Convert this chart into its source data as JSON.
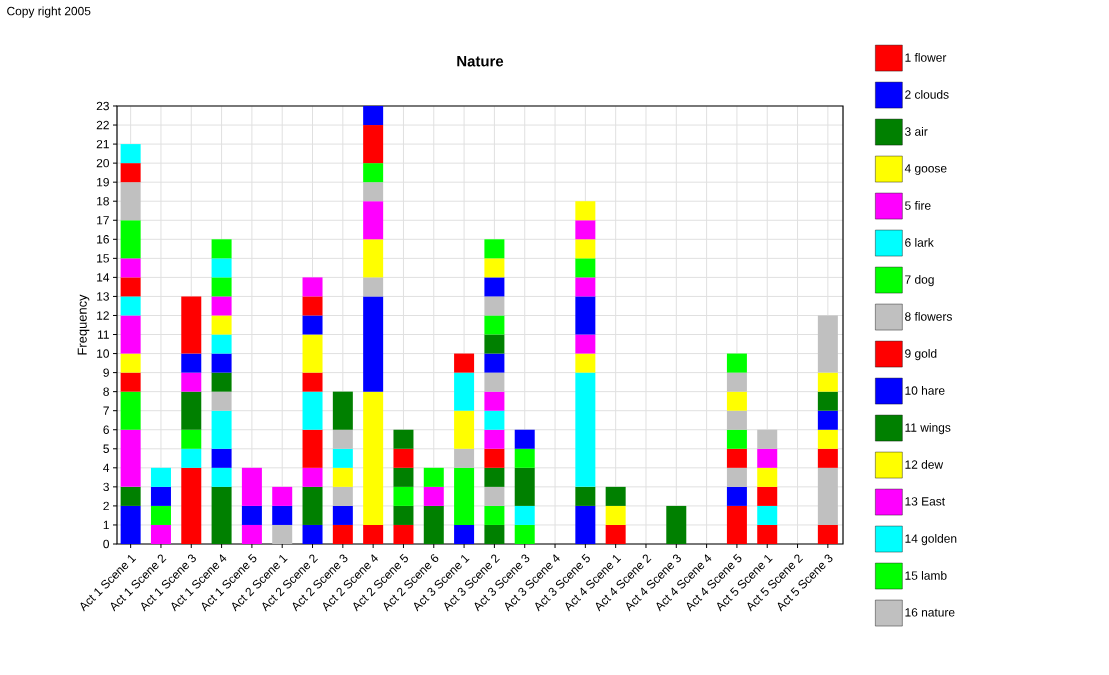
{
  "chart_data": {
    "type": "bar",
    "title": "Nature",
    "ylabel": "Frequency",
    "annotations": [
      "Copy right 2005"
    ],
    "categories": [
      "Act 1 Scene 1",
      "Act 1 Scene 2",
      "Act 1 Scene 3",
      "Act 1 Scene 4",
      "Act 1 Scene 5",
      "Act 2 Scene 1",
      "Act 2 Scene 2",
      "Act 2 Scene 3",
      "Act 2 Scene 4",
      "Act 2 Scene 5",
      "Act 2 Scene 6",
      "Act 3 Scene 1",
      "Act 3 Scene 2",
      "Act 3 Scene 3",
      "Act 3 Scene 4",
      "Act 3 Scene 5",
      "Act 4 Scene 1",
      "Act 4 Scene 2",
      "Act 4 Scene 3",
      "Act 4 Scene 4",
      "Act 4 Scene 5",
      "Act 5 Scene 1",
      "Act 5 Scene 2",
      "Act 5 Scene 3"
    ],
    "stacked": true,
    "grid": true,
    "legend": "right",
    "ylim": [
      0,
      23
    ],
    "yticks": [
      0,
      1,
      2,
      3,
      4,
      5,
      6,
      7,
      8,
      9,
      10,
      11,
      12,
      13,
      14,
      15,
      16,
      17,
      18,
      19,
      20,
      21,
      22,
      23
    ],
    "series": [
      {
        "name": "1  flower",
        "color": "#ff0000",
        "values": [
          null,
          null,
          4,
          null,
          null,
          null,
          null,
          1,
          1,
          1,
          null,
          null,
          null,
          null,
          null,
          null,
          1,
          null,
          null,
          null,
          2,
          1,
          null,
          1
        ]
      },
      {
        "name": "2  clouds",
        "color": "#0000ff",
        "values": [
          2,
          null,
          null,
          null,
          null,
          null,
          1,
          1,
          null,
          null,
          null,
          1,
          null,
          null,
          null,
          2,
          null,
          null,
          null,
          null,
          1,
          null,
          null,
          null
        ]
      },
      {
        "name": "3  air",
        "color": "#008000",
        "values": [
          1,
          null,
          null,
          3,
          null,
          null,
          2,
          null,
          null,
          1,
          2,
          null,
          1,
          null,
          null,
          1,
          null,
          null,
          2,
          null,
          null,
          null,
          null,
          null
        ]
      },
      {
        "name": "4  goose",
        "color": "#ffff00",
        "values": [
          null,
          null,
          null,
          null,
          null,
          null,
          null,
          null,
          7,
          null,
          null,
          null,
          null,
          null,
          null,
          null,
          1,
          null,
          null,
          null,
          null,
          null,
          null,
          null
        ]
      },
      {
        "name": "5  fire",
        "color": "#ff00ff",
        "values": [
          3,
          1,
          null,
          null,
          1,
          null,
          1,
          null,
          null,
          null,
          1,
          null,
          null,
          null,
          null,
          null,
          null,
          null,
          null,
          null,
          null,
          null,
          null,
          null
        ]
      },
      {
        "name": "6  lark",
        "color": "#00ffff",
        "values": [
          null,
          null,
          1,
          1,
          null,
          null,
          null,
          null,
          null,
          null,
          null,
          null,
          null,
          null,
          null,
          6,
          null,
          null,
          null,
          null,
          null,
          1,
          null,
          null
        ]
      },
      {
        "name": "7  dog",
        "color": "#00ff00",
        "values": [
          2,
          1,
          1,
          null,
          null,
          null,
          null,
          null,
          null,
          1,
          1,
          3,
          1,
          1,
          null,
          null,
          null,
          null,
          null,
          null,
          null,
          null,
          null,
          null
        ]
      },
      {
        "name": "8  flowers",
        "color": "#c0c0c0",
        "values": [
          null,
          null,
          null,
          null,
          null,
          1,
          null,
          1,
          null,
          null,
          null,
          1,
          1,
          null,
          null,
          null,
          null,
          null,
          null,
          null,
          1,
          null,
          null,
          3
        ]
      },
      {
        "name": "9  gold",
        "color": "#ff0000",
        "values": [
          1,
          null,
          null,
          null,
          null,
          null,
          2,
          null,
          null,
          null,
          null,
          null,
          null,
          null,
          null,
          null,
          null,
          null,
          null,
          null,
          1,
          1,
          null,
          1
        ]
      },
      {
        "name": "10  hare",
        "color": "#0000ff",
        "values": [
          null,
          1,
          null,
          1,
          1,
          1,
          null,
          null,
          5,
          null,
          null,
          null,
          null,
          null,
          null,
          null,
          null,
          null,
          null,
          null,
          null,
          null,
          null,
          null
        ]
      },
      {
        "name": "11  wings",
        "color": "#008000",
        "values": [
          null,
          null,
          2,
          null,
          null,
          null,
          null,
          null,
          null,
          1,
          null,
          null,
          1,
          null,
          null,
          null,
          1,
          null,
          null,
          null,
          null,
          null,
          null,
          null
        ]
      },
      {
        "name": "12  dew",
        "color": "#ffff00",
        "values": [
          1,
          null,
          null,
          null,
          null,
          null,
          null,
          1,
          null,
          null,
          null,
          2,
          null,
          null,
          null,
          1,
          null,
          null,
          null,
          null,
          null,
          1,
          null,
          1
        ]
      },
      {
        "name": "13  East",
        "color": "#ff00ff",
        "values": [
          2,
          null,
          1,
          null,
          2,
          1,
          null,
          null,
          null,
          null,
          null,
          null,
          null,
          null,
          null,
          1,
          null,
          null,
          null,
          null,
          null,
          1,
          null,
          null
        ]
      },
      {
        "name": "14  golden",
        "color": "#00ffff",
        "values": [
          1,
          1,
          null,
          2,
          null,
          null,
          2,
          1,
          null,
          null,
          null,
          2,
          null,
          1,
          null,
          null,
          null,
          null,
          null,
          null,
          null,
          null,
          null,
          null
        ]
      },
      {
        "name": "15  lamb",
        "color": "#00ff00",
        "values": [
          null,
          null,
          null,
          null,
          null,
          null,
          null,
          null,
          null,
          null,
          null,
          null,
          null,
          null,
          null,
          null,
          null,
          null,
          null,
          null,
          1,
          null,
          null,
          null
        ]
      },
      {
        "name": "16  nature",
        "color": "#c0c0c0",
        "values": [
          null,
          null,
          null,
          1,
          null,
          null,
          null,
          1,
          1,
          null,
          null,
          null,
          null,
          null,
          null,
          null,
          null,
          null,
          null,
          null,
          1,
          1,
          null,
          null
        ]
      },
      {
        "color": "#ff0000",
        "values": [
          1,
          null,
          null,
          null,
          null,
          null,
          1,
          null,
          null,
          1,
          null,
          1,
          1,
          null,
          null,
          null,
          null,
          null,
          null,
          null,
          null,
          null,
          null,
          null
        ]
      },
      {
        "color": "#0000ff",
        "values": [
          null,
          null,
          1,
          null,
          null,
          null,
          null,
          null,
          null,
          null,
          null,
          null,
          null,
          null,
          null,
          2,
          null,
          null,
          null,
          null,
          null,
          null,
          null,
          1
        ]
      },
      {
        "color": "#008000",
        "values": [
          null,
          null,
          null,
          1,
          null,
          null,
          null,
          2,
          null,
          1,
          null,
          null,
          null,
          2,
          null,
          null,
          null,
          null,
          null,
          null,
          null,
          null,
          null,
          1
        ]
      },
      {
        "color": "#ffff00",
        "values": [
          null,
          null,
          null,
          null,
          null,
          null,
          2,
          null,
          2,
          null,
          null,
          null,
          null,
          null,
          null,
          null,
          null,
          null,
          null,
          null,
          1,
          null,
          null,
          1
        ]
      },
      {
        "color": "#ff00ff",
        "values": [
          1,
          null,
          null,
          null,
          null,
          null,
          null,
          null,
          2,
          null,
          null,
          null,
          1,
          null,
          null,
          1,
          null,
          null,
          null,
          null,
          null,
          null,
          null,
          null
        ]
      },
      {
        "color": "#00ffff",
        "values": [
          null,
          null,
          null,
          null,
          null,
          null,
          null,
          null,
          null,
          null,
          null,
          null,
          1,
          null,
          null,
          null,
          null,
          null,
          null,
          null,
          null,
          null,
          null,
          null
        ]
      },
      {
        "color": "#00ff00",
        "values": [
          2,
          null,
          null,
          null,
          null,
          null,
          null,
          null,
          null,
          null,
          null,
          null,
          null,
          1,
          null,
          1,
          null,
          null,
          null,
          null,
          null,
          null,
          null,
          null
        ]
      },
      {
        "color": "#c0c0c0",
        "values": [
          2,
          null,
          null,
          null,
          null,
          null,
          null,
          null,
          1,
          null,
          null,
          null,
          null,
          null,
          null,
          null,
          null,
          null,
          null,
          null,
          1,
          null,
          null,
          3
        ]
      },
      {
        "color": "#ff0000",
        "values": [
          1,
          null,
          3,
          null,
          null,
          null,
          null,
          null,
          null,
          null,
          null,
          null,
          null,
          null,
          null,
          null,
          null,
          null,
          null,
          null,
          null,
          null,
          null,
          null
        ]
      },
      {
        "color": "#0000ff",
        "values": [
          null,
          null,
          null,
          1,
          null,
          null,
          1,
          null,
          null,
          null,
          null,
          null,
          null,
          1,
          null,
          null,
          null,
          null,
          null,
          null,
          null,
          null,
          null,
          null
        ]
      },
      {
        "color": "#ffff00",
        "values": [
          null,
          null,
          null,
          null,
          null,
          null,
          null,
          null,
          null,
          null,
          null,
          null,
          null,
          null,
          null,
          1,
          null,
          null,
          null,
          null,
          null,
          null,
          null,
          null
        ]
      },
      {
        "color": "#ff00ff",
        "values": [
          null,
          null,
          null,
          null,
          null,
          null,
          null,
          null,
          null,
          null,
          null,
          null,
          1,
          null,
          null,
          1,
          null,
          null,
          null,
          null,
          null,
          null,
          null,
          null
        ]
      },
      {
        "color": "#00ffff",
        "values": [
          1,
          null,
          null,
          1,
          null,
          null,
          null,
          null,
          null,
          null,
          null,
          null,
          null,
          null,
          null,
          null,
          null,
          null,
          null,
          null,
          null,
          null,
          null,
          null
        ]
      },
      {
        "color": "#00ff00",
        "values": [
          null,
          null,
          null,
          null,
          null,
          null,
          null,
          null,
          1,
          null,
          null,
          null,
          null,
          null,
          null,
          null,
          null,
          null,
          null,
          null,
          1,
          null,
          null,
          null
        ]
      },
      {
        "color": "#c0c0c0",
        "values": [
          null,
          null,
          null,
          null,
          null,
          null,
          null,
          null,
          null,
          null,
          null,
          null,
          1,
          null,
          null,
          null,
          null,
          null,
          null,
          null,
          null,
          null,
          null,
          null
        ]
      },
      {
        "color": "#ff0000",
        "values": [
          null,
          null,
          null,
          null,
          null,
          null,
          1,
          null,
          2,
          null,
          null,
          null,
          null,
          null,
          null,
          null,
          null,
          null,
          null,
          null,
          null,
          null,
          null,
          null
        ]
      },
      {
        "color": "#0000ff",
        "values": [
          null,
          null,
          null,
          null,
          null,
          null,
          null,
          null,
          1,
          null,
          null,
          null,
          1,
          null,
          null,
          null,
          null,
          null,
          null,
          null,
          null,
          null,
          null,
          null
        ]
      },
      {
        "color": "#008000",
        "values": [
          null,
          null,
          null,
          null,
          null,
          null,
          null,
          null,
          null,
          null,
          null,
          null,
          1,
          null,
          null,
          null,
          null,
          null,
          null,
          null,
          null,
          null,
          null,
          null
        ]
      },
      {
        "color": "#ffff00",
        "values": [
          null,
          null,
          null,
          1,
          null,
          null,
          null,
          null,
          null,
          null,
          null,
          null,
          null,
          null,
          null,
          1,
          null,
          null,
          null,
          null,
          null,
          null,
          null,
          null
        ]
      },
      {
        "color": "#ff00ff",
        "values": [
          null,
          null,
          null,
          1,
          null,
          null,
          1,
          null,
          null,
          null,
          null,
          null,
          null,
          null,
          null,
          null,
          null,
          null,
          null,
          null,
          null,
          null,
          null,
          null
        ]
      },
      {
        "color": "#00ff00",
        "values": [
          null,
          null,
          null,
          1,
          null,
          null,
          null,
          null,
          null,
          null,
          null,
          null,
          1,
          null,
          null,
          null,
          null,
          null,
          null,
          null,
          null,
          null,
          null,
          null
        ]
      },
      {
        "color": "#c0c0c0",
        "values": [
          null,
          null,
          null,
          null,
          null,
          null,
          null,
          null,
          null,
          null,
          null,
          null,
          1,
          null,
          null,
          null,
          null,
          null,
          null,
          null,
          null,
          null,
          null,
          null
        ]
      },
      {
        "color": "#0000ff",
        "values": [
          null,
          null,
          null,
          null,
          null,
          null,
          null,
          null,
          null,
          null,
          null,
          null,
          1,
          null,
          null,
          null,
          null,
          null,
          null,
          null,
          null,
          null,
          null,
          null
        ]
      },
      {
        "color": "#ffff00",
        "values": [
          null,
          null,
          null,
          null,
          null,
          null,
          null,
          null,
          null,
          null,
          null,
          null,
          1,
          null,
          null,
          null,
          null,
          null,
          null,
          null,
          null,
          null,
          null,
          null
        ]
      },
      {
        "color": "#00ffff",
        "values": [
          null,
          null,
          null,
          1,
          null,
          null,
          null,
          null,
          null,
          null,
          null,
          null,
          null,
          null,
          null,
          null,
          null,
          null,
          null,
          null,
          null,
          null,
          null,
          null
        ]
      },
      {
        "color": "#00ff00",
        "values": [
          null,
          null,
          null,
          1,
          null,
          null,
          null,
          null,
          null,
          null,
          null,
          null,
          1,
          null,
          null,
          null,
          null,
          null,
          null,
          null,
          null,
          null,
          null,
          null
        ]
      }
    ]
  }
}
